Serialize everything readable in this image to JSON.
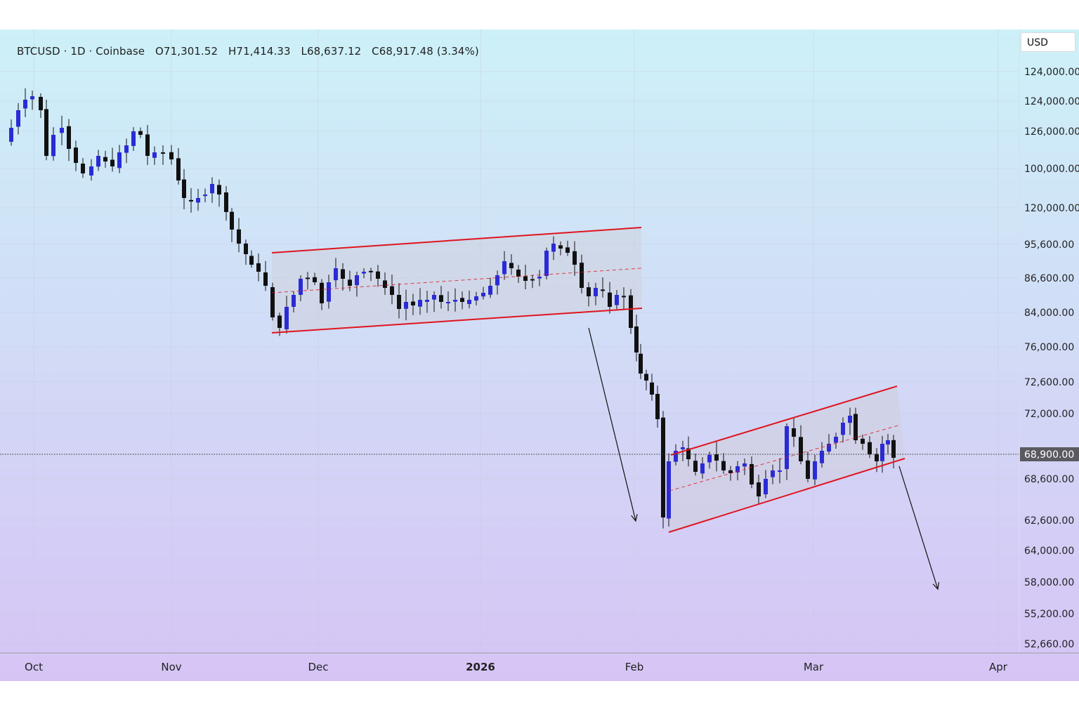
{
  "header": {
    "symbol": "BTCUSD",
    "interval": "1D",
    "exchange": "Coinbase",
    "open": "O71,301.52",
    "high": "H71,414.33",
    "low": "L68,637.12",
    "close": "C68,917.48",
    "change": "(3.34%)"
  },
  "currency": "USD",
  "last_price_label": "68,900.00",
  "colors": {
    "bull_candle": "#2b2bd6",
    "bear_candle": "#111111",
    "channel_line": "#e0141e",
    "channel_fill": "#cfcfd6",
    "bg_top": "#cdf1f8",
    "bg_bottom": "#d6c4f5",
    "grid": "#c8c8d8"
  },
  "chart_data": {
    "type": "candlestick",
    "symbol": "BTCUSD",
    "x_axis_labels": [
      "Oct",
      "Nov",
      "Dec",
      "2026",
      "Feb",
      "Mar",
      "Apr"
    ],
    "y_axis_labels": [
      "124,000.00",
      "124,000.00",
      "126,000.00",
      "100,000.00",
      "120,000.00",
      "95,600.00",
      "86,600.00",
      "84,000.00",
      "76,000.00",
      "72,600.00",
      "72,000.00",
      "68,900.00",
      "68,600.00",
      "62,600.00",
      "64,000.00",
      "58,000.00",
      "55,200.00",
      "52,660.00"
    ],
    "price_range": [
      52000,
      125000
    ],
    "last_price": 68900,
    "grid": true,
    "annotations": [
      {
        "type": "parallel_channel",
        "direction": "slightly ascending",
        "period": "late Nov to late Jan",
        "approx_price_range": [
          80000,
          99000
        ]
      },
      {
        "type": "arrow",
        "direction": "down",
        "period": "late Jan to early Feb"
      },
      {
        "type": "parallel_channel",
        "direction": "ascending (bear flag)",
        "period": "early Feb to mid Mar",
        "approx_price_range": [
          60000,
          72600
        ]
      },
      {
        "type": "arrow",
        "direction": "down",
        "period": "mid Mar onward"
      }
    ]
  }
}
